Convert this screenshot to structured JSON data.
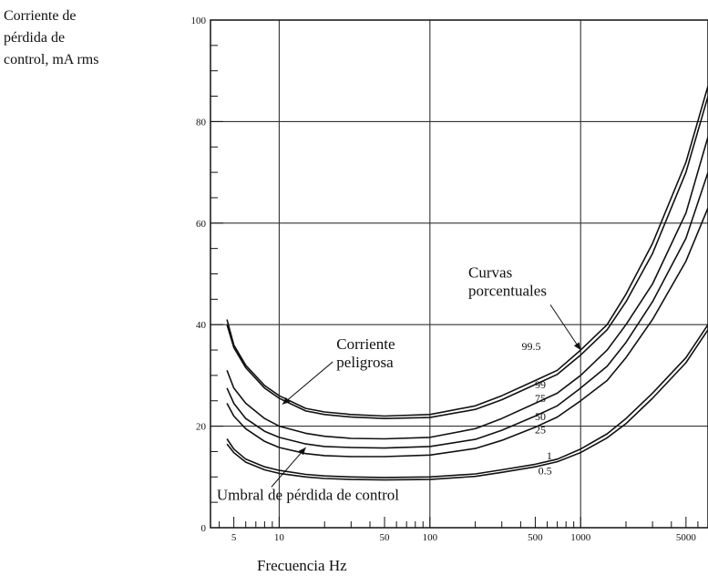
{
  "chart_data": {
    "type": "line",
    "ylabel_lines": [
      "Corriente de",
      "pérdida de",
      "control, mA rms"
    ],
    "xlabel": "Frecuencia Hz",
    "x_scale": "log",
    "xlim": [
      3.5,
      7000
    ],
    "ylim": [
      0,
      100
    ],
    "y_ticks": [
      0,
      20,
      40,
      60,
      80,
      100
    ],
    "x_tick_labels": [
      5,
      10,
      50,
      100,
      500,
      1000,
      5000
    ],
    "x_gridlines": [
      10,
      100,
      1000
    ],
    "y_gridlines": [
      20,
      40,
      60,
      80
    ],
    "series": [
      {
        "name": "99.5",
        "x": [
          4.5,
          5,
          6,
          8,
          10,
          15,
          20,
          30,
          50,
          100,
          200,
          300,
          500,
          700,
          1000,
          1500,
          2000,
          3000,
          5000,
          7000
        ],
        "y": [
          41,
          36,
          32,
          28,
          26,
          23.5,
          22.8,
          22.3,
          22,
          22.3,
          24,
          26,
          29,
          31,
          35,
          40,
          46,
          56,
          72,
          87
        ]
      },
      {
        "name": "99",
        "x": [
          4.5,
          5,
          6,
          8,
          10,
          15,
          20,
          30,
          50,
          100,
          200,
          300,
          500,
          700,
          1000,
          1500,
          2000,
          3000,
          5000,
          7000
        ],
        "y": [
          40,
          35.5,
          31.5,
          27.5,
          25.5,
          23,
          22.3,
          21.8,
          21.5,
          21.7,
          23.3,
          25.2,
          28.2,
          30.2,
          34,
          39,
          44.5,
          54,
          70,
          85
        ]
      },
      {
        "name": "75",
        "x": [
          4.5,
          5,
          6,
          8,
          10,
          15,
          20,
          30,
          50,
          100,
          200,
          300,
          500,
          700,
          1000,
          1500,
          2000,
          3000,
          5000,
          7000
        ],
        "y": [
          31,
          27.5,
          24.5,
          21.5,
          20,
          18.6,
          18,
          17.6,
          17.5,
          17.8,
          19.5,
          21.5,
          24.5,
          26.5,
          30,
          35,
          40,
          48,
          62,
          77
        ]
      },
      {
        "name": "50",
        "x": [
          4.5,
          5,
          6,
          8,
          10,
          15,
          20,
          30,
          50,
          100,
          200,
          300,
          500,
          700,
          1000,
          1500,
          2000,
          3000,
          5000,
          7000
        ],
        "y": [
          27.5,
          24.5,
          21.5,
          19,
          17.8,
          16.5,
          16,
          15.8,
          15.7,
          16,
          17.4,
          19.2,
          22,
          24,
          27.5,
          31.8,
          36.5,
          44.5,
          57,
          70
        ]
      },
      {
        "name": "25",
        "x": [
          4.5,
          5,
          6,
          8,
          10,
          15,
          20,
          30,
          50,
          100,
          200,
          300,
          500,
          700,
          1000,
          1500,
          2000,
          3000,
          5000,
          7000
        ],
        "y": [
          24.5,
          22,
          19.5,
          17,
          15.8,
          14.6,
          14.2,
          14,
          14,
          14.3,
          15.6,
          17.2,
          19.8,
          21.8,
          25,
          29,
          33.5,
          41,
          52.5,
          63
        ]
      },
      {
        "name": "1",
        "x": [
          4.5,
          5,
          6,
          8,
          10,
          15,
          20,
          30,
          50,
          100,
          200,
          300,
          500,
          700,
          1000,
          1500,
          2000,
          3000,
          5000,
          7000
        ],
        "y": [
          17.5,
          15.5,
          13.5,
          12,
          11.3,
          10.5,
          10.2,
          10,
          9.9,
          10,
          10.6,
          11.4,
          12.5,
          13.5,
          15.5,
          18.5,
          21.5,
          26.5,
          33.5,
          40
        ]
      },
      {
        "name": "0.5",
        "x": [
          4.5,
          5,
          6,
          8,
          10,
          15,
          20,
          30,
          50,
          100,
          200,
          300,
          500,
          700,
          1000,
          1500,
          2000,
          3000,
          5000,
          7000
        ],
        "y": [
          16.5,
          14.8,
          12.9,
          11.4,
          10.7,
          10,
          9.7,
          9.5,
          9.4,
          9.5,
          10.1,
          10.9,
          12,
          13,
          14.8,
          17.7,
          20.5,
          25.5,
          32.5,
          39
        ]
      }
    ],
    "curve_labels": [
      {
        "text": "99.5",
        "x": 470,
        "y": 35
      },
      {
        "text": "99",
        "x": 540,
        "y": 27.5
      },
      {
        "text": "75",
        "x": 540,
        "y": 24.8
      },
      {
        "text": "50",
        "x": 540,
        "y": 21.2
      },
      {
        "text": "25",
        "x": 540,
        "y": 18.6
      },
      {
        "text": "1",
        "x": 620,
        "y": 13.5
      },
      {
        "text": "0.5",
        "x": 580,
        "y": 10.5
      }
    ],
    "annotations": [
      {
        "lines": [
          "Corriente",
          "peligrosa"
        ],
        "text_x": 24,
        "text_y": 35.2,
        "arrow_to": [
          10.5,
          24.3
        ]
      },
      {
        "lines": [
          "Curvas",
          "porcentuales"
        ],
        "text_x": 180,
        "text_y": 49.3,
        "arrow_to": [
          1000,
          35
        ]
      },
      {
        "lines": [
          "Umbral de pérdida de control"
        ],
        "text_x": 3.85,
        "text_y": 5.5,
        "arrow_to": [
          15,
          15.8
        ]
      }
    ],
    "grid": true,
    "legend": "none"
  }
}
